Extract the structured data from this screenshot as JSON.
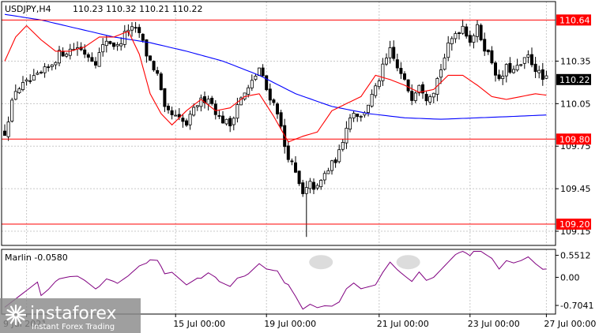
{
  "header": {
    "symbol": "USDJPY,H4",
    "ohlc": "110.23 110.32 110.21 110.22"
  },
  "colors": {
    "background": "#ffffff",
    "grid": "#c8c8c8",
    "frame": "#000000",
    "candle": "#000000",
    "fast_ma": "#ff0000",
    "slow_ma": "#0000ff",
    "level_line": "#ff0000",
    "level_badge_bg": "#ff0000",
    "level_badge_text": "#ffffff",
    "price_badge_bg": "#000000",
    "marlin_line": "#800080",
    "highlight": "#c0c0c0"
  },
  "price_axis": {
    "ticks": [
      "110.35",
      "110.05",
      "109.75",
      "109.45",
      "109.15"
    ],
    "range": [
      109.05,
      110.77
    ],
    "current_price": "110.22"
  },
  "levels": [
    {
      "label": "110.64",
      "value": 110.64
    },
    {
      "label": "109.80",
      "value": 109.8
    },
    {
      "label": "109.20",
      "value": 109.2
    }
  ],
  "indicator": {
    "label": "Marlin -0.0580",
    "ticks": [
      {
        "label": "0.5512",
        "value": 0.5512
      },
      {
        "label": "0.00",
        "value": 0.0
      },
      {
        "label": "-0.7041",
        "value": -0.7041
      }
    ],
    "range": [
      -0.92,
      0.7
    ]
  },
  "time_axis": {
    "labels": [
      "9 Jul 2021",
      "15 Jul 00:00",
      "19 Jul 00:00",
      "21 Jul 00:00",
      "23 Jul 00:00",
      "27 Jul 00:00"
    ],
    "positions": [
      6,
      47,
      72,
      103,
      128,
      149
    ]
  },
  "watermark": {
    "brand": "instaforex",
    "tagline": "Instant Forex Trading"
  },
  "chart_data": {
    "type": "candlestick",
    "bar_count": 150,
    "price_keys": [
      [
        0,
        109.85
      ],
      [
        3,
        110.15
      ],
      [
        8,
        110.22
      ],
      [
        12,
        110.3
      ],
      [
        15,
        110.4
      ],
      [
        20,
        110.45
      ],
      [
        25,
        110.35
      ],
      [
        28,
        110.5
      ],
      [
        31,
        110.45
      ],
      [
        34,
        110.58
      ],
      [
        37,
        110.55
      ],
      [
        39,
        110.4
      ],
      [
        42,
        110.25
      ],
      [
        44,
        110.0
      ],
      [
        47,
        109.95
      ],
      [
        50,
        109.9
      ],
      [
        53,
        110.05
      ],
      [
        56,
        110.1
      ],
      [
        59,
        109.95
      ],
      [
        62,
        109.9
      ],
      [
        64,
        110.05
      ],
      [
        67,
        110.15
      ],
      [
        70,
        110.3
      ],
      [
        72,
        110.15
      ],
      [
        75,
        110.0
      ],
      [
        77,
        109.75
      ],
      [
        80,
        109.55
      ],
      [
        82,
        109.4
      ],
      [
        84,
        109.48
      ],
      [
        86,
        109.45
      ],
      [
        88,
        109.55
      ],
      [
        90,
        109.62
      ],
      [
        92,
        109.7
      ],
      [
        94,
        109.9
      ],
      [
        96,
        110.0
      ],
      [
        98,
        109.95
      ],
      [
        100,
        110.05
      ],
      [
        102,
        110.15
      ],
      [
        104,
        110.3
      ],
      [
        106,
        110.42
      ],
      [
        108,
        110.3
      ],
      [
        110,
        110.2
      ],
      [
        112,
        110.1
      ],
      [
        114,
        110.2
      ],
      [
        116,
        110.1
      ],
      [
        118,
        110.15
      ],
      [
        120,
        110.3
      ],
      [
        122,
        110.45
      ],
      [
        124,
        110.55
      ],
      [
        126,
        110.6
      ],
      [
        128,
        110.5
      ],
      [
        130,
        110.58
      ],
      [
        132,
        110.45
      ],
      [
        134,
        110.35
      ],
      [
        136,
        110.2
      ],
      [
        138,
        110.3
      ],
      [
        140,
        110.28
      ],
      [
        142,
        110.32
      ],
      [
        144,
        110.38
      ],
      [
        146,
        110.3
      ],
      [
        148,
        110.22
      ],
      [
        149,
        110.22
      ]
    ],
    "fast_ma_keys": [
      [
        0,
        110.35
      ],
      [
        3,
        110.52
      ],
      [
        6,
        110.6
      ],
      [
        10,
        110.5
      ],
      [
        14,
        110.42
      ],
      [
        18,
        110.42
      ],
      [
        22,
        110.45
      ],
      [
        26,
        110.52
      ],
      [
        30,
        110.52
      ],
      [
        34,
        110.56
      ],
      [
        37,
        110.4
      ],
      [
        40,
        110.12
      ],
      [
        43,
        109.98
      ],
      [
        46,
        109.9
      ],
      [
        50,
        110.0
      ],
      [
        54,
        110.08
      ],
      [
        58,
        110.0
      ],
      [
        62,
        110.02
      ],
      [
        66,
        110.1
      ],
      [
        70,
        110.12
      ],
      [
        74,
        109.96
      ],
      [
        78,
        109.78
      ],
      [
        82,
        109.82
      ],
      [
        86,
        109.85
      ],
      [
        90,
        110.0
      ],
      [
        94,
        110.05
      ],
      [
        98,
        110.1
      ],
      [
        102,
        110.25
      ],
      [
        106,
        110.22
      ],
      [
        110,
        110.18
      ],
      [
        114,
        110.13
      ],
      [
        118,
        110.15
      ],
      [
        122,
        110.25
      ],
      [
        126,
        110.25
      ],
      [
        130,
        110.18
      ],
      [
        134,
        110.1
      ],
      [
        138,
        110.08
      ],
      [
        142,
        110.1
      ],
      [
        146,
        110.12
      ],
      [
        149,
        110.11
      ]
    ],
    "slow_ma_keys": [
      [
        0,
        110.68
      ],
      [
        10,
        110.64
      ],
      [
        20,
        110.58
      ],
      [
        30,
        110.52
      ],
      [
        40,
        110.48
      ],
      [
        50,
        110.42
      ],
      [
        60,
        110.35
      ],
      [
        70,
        110.25
      ],
      [
        80,
        110.12
      ],
      [
        90,
        110.03
      ],
      [
        100,
        109.98
      ],
      [
        110,
        109.95
      ],
      [
        120,
        109.94
      ],
      [
        130,
        109.95
      ],
      [
        140,
        109.96
      ],
      [
        149,
        109.97
      ]
    ]
  }
}
